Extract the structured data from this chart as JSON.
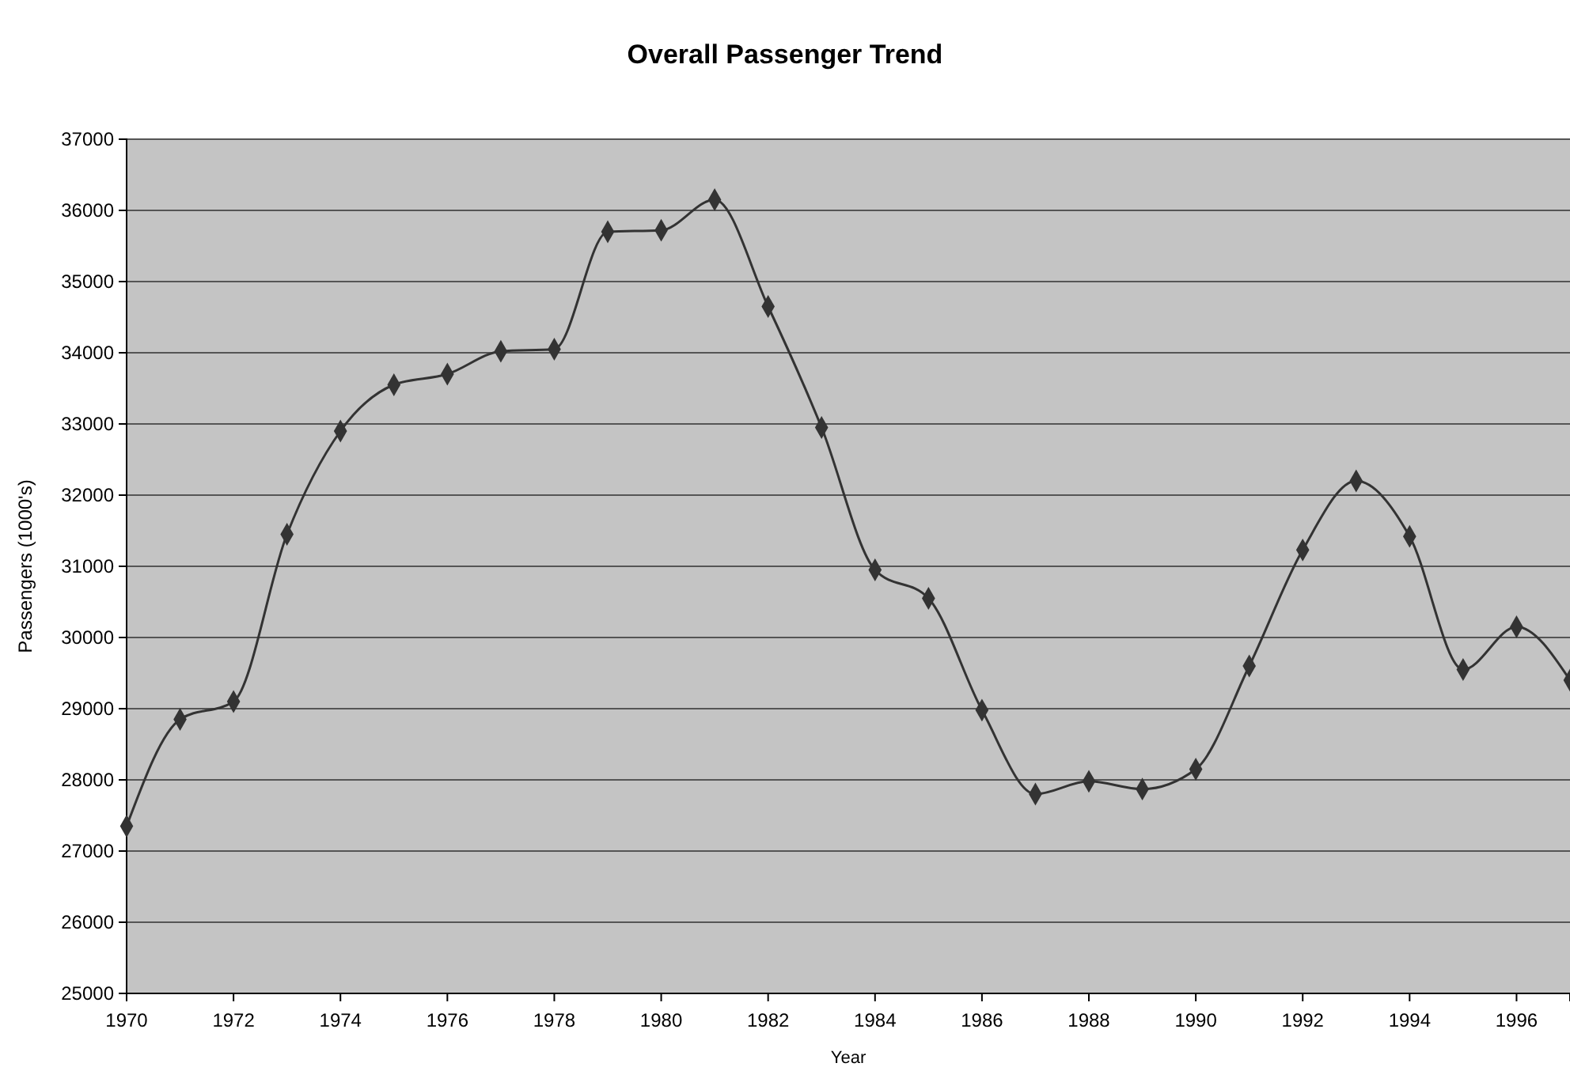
{
  "chart_data": {
    "type": "line",
    "title": "Overall Passenger Trend",
    "xlabel": "Year",
    "ylabel": "Passengers (1000's)",
    "x": [
      1970,
      1971,
      1972,
      1973,
      1974,
      1975,
      1976,
      1977,
      1978,
      1979,
      1980,
      1981,
      1982,
      1983,
      1984,
      1985,
      1986,
      1987,
      1988,
      1989,
      1990,
      1991,
      1992,
      1993,
      1994,
      1995,
      1996,
      1997
    ],
    "series": [
      {
        "color": "#333333",
        "values": [
          27350,
          28850,
          29100,
          31450,
          32900,
          33550,
          33700,
          34020,
          34050,
          35700,
          35720,
          36150,
          34650,
          32950,
          30950,
          30550,
          28980,
          27800,
          27980,
          27870,
          28150,
          29600,
          31230,
          32200,
          31420,
          29550,
          30150,
          29400
        ]
      }
    ],
    "xlim": [
      1970,
      1997
    ],
    "xticks": [
      1970,
      1972,
      1974,
      1976,
      1978,
      1980,
      1982,
      1984,
      1986,
      1988,
      1990,
      1992,
      1994,
      1996
    ],
    "ylim": [
      25000,
      37000
    ],
    "yticks": [
      25000,
      26000,
      27000,
      28000,
      29000,
      30000,
      31000,
      32000,
      33000,
      34000,
      35000,
      36000,
      37000
    ],
    "grid": "y",
    "marker": "diamond",
    "line_style": "solid"
  }
}
